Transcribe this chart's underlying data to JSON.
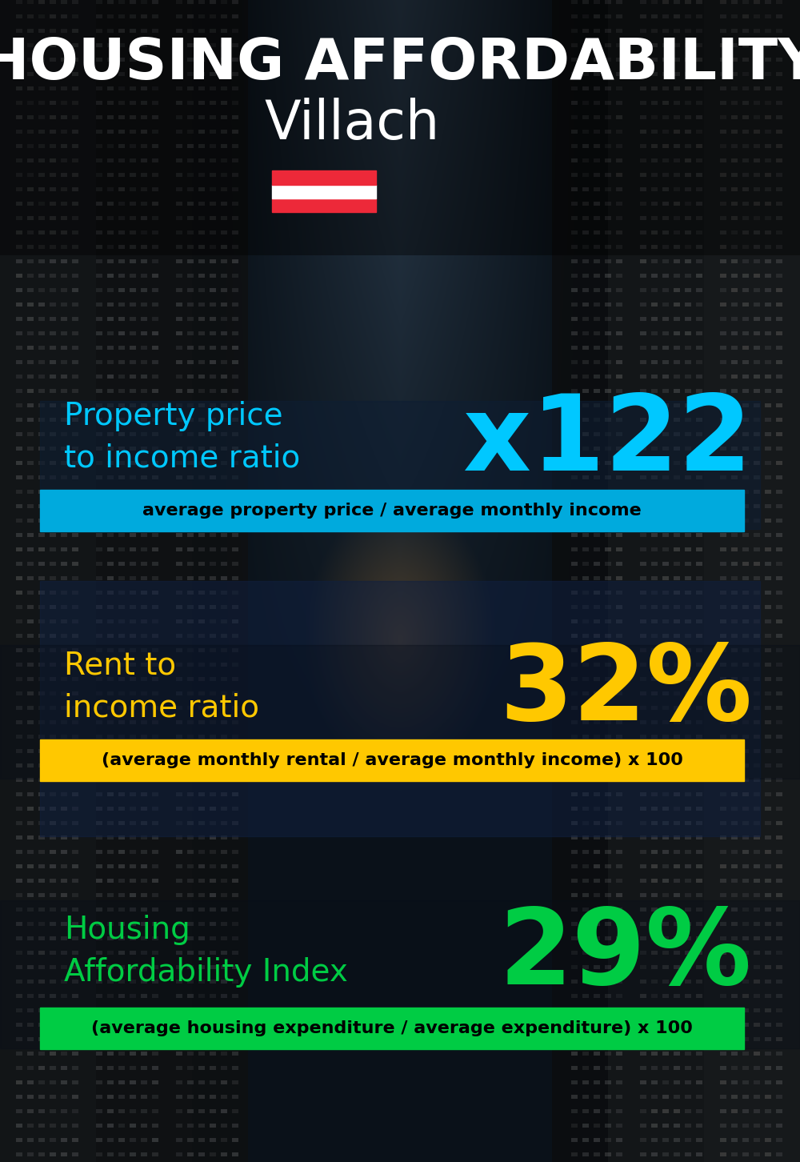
{
  "title_line1": "HOUSING AFFORDABILITY",
  "title_line2": "Villach",
  "section1_label": "Property price\nto income ratio",
  "section1_value": "x122",
  "section1_label_color": "#00c8ff",
  "section1_value_color": "#00c8ff",
  "section1_formula": "average property price / average monthly income",
  "section1_formula_bg": "#00aadd",
  "section2_label": "Rent to\nincome ratio",
  "section2_value": "32%",
  "section2_label_color": "#ffc800",
  "section2_value_color": "#ffc800",
  "section2_formula": "(average monthly rental / average monthly income) x 100",
  "section2_formula_bg": "#ffc800",
  "section3_label": "Housing\nAffordability Index",
  "section3_value": "29%",
  "section3_label_color": "#00cc44",
  "section3_value_color": "#00cc44",
  "section3_formula": "(average housing expenditure / average expenditure) x 100",
  "section3_formula_bg": "#00cc44",
  "flag_red": "#ED2939",
  "flag_white": "#ffffff"
}
